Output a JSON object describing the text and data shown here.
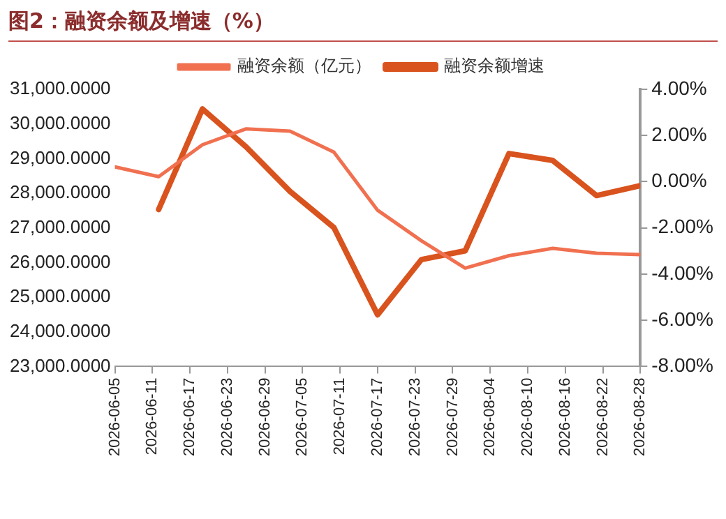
{
  "chart_data": {
    "type": "line",
    "title": "图2：融资余额及增速（%）",
    "x": [
      "2026-06-05",
      "2026-06-12",
      "2026-06-19",
      "2026-06-26",
      "2026-07-03",
      "2026-07-10",
      "2026-07-17",
      "2026-07-24",
      "2026-07-31",
      "2026-08-07",
      "2026-08-14",
      "2026-08-21",
      "2026-08-28"
    ],
    "series": [
      {
        "name": "融资余额（亿元）",
        "color": "#f07050",
        "values": [
          28760,
          28480,
          29400,
          29860,
          29790,
          29190,
          27510,
          26630,
          25840,
          26200,
          26410,
          26270,
          26230
        ]
      },
      {
        "name": "融资余额增速",
        "color": "#d9531e",
        "axis": "y2",
        "values": [
          null,
          -1.2,
          3.15,
          1.5,
          -0.42,
          -1.98,
          -5.76,
          -3.37,
          -2.99,
          1.22,
          0.92,
          -0.6,
          -0.17
        ]
      }
    ],
    "xlim": [
      "2026-06-05",
      "2026-08-28"
    ],
    "xticks": [
      "2026-06-05",
      "2026-06-11",
      "2026-06-17",
      "2026-06-23",
      "2026-06-29",
      "2026-07-05",
      "2026-07-11",
      "2026-07-17",
      "2026-07-23",
      "2026-07-29",
      "2026-08-04",
      "2026-08-10",
      "2026-08-16",
      "2026-08-22",
      "2026-08-28"
    ],
    "ylim": [
      23000,
      31000
    ],
    "yticks": [
      {
        "value": 23000,
        "label": "23,000.0000"
      },
      {
        "value": 24000,
        "label": "24,000.0000"
      },
      {
        "value": 25000,
        "label": "25,000.0000"
      },
      {
        "value": 26000,
        "label": "26,000.0000"
      },
      {
        "value": 27000,
        "label": "27,000.0000"
      },
      {
        "value": 28000,
        "label": "28,000.0000"
      },
      {
        "value": 29000,
        "label": "29,000.0000"
      },
      {
        "value": 30000,
        "label": "30,000.0000"
      },
      {
        "value": 31000,
        "label": "31,000.0000"
      }
    ],
    "y2lim": [
      -8,
      4
    ],
    "y2ticks": [
      {
        "value": -8,
        "label": "-8.00%"
      },
      {
        "value": -6,
        "label": "-6.00%"
      },
      {
        "value": -4,
        "label": "-4.00%"
      },
      {
        "value": -2,
        "label": "-2.00%"
      },
      {
        "value": 0,
        "label": "0.00%"
      },
      {
        "value": 2,
        "label": "2.00%"
      },
      {
        "value": 4,
        "label": "4.00%"
      }
    ],
    "grid": false,
    "legend": "top",
    "marker": "none",
    "line_style": "solid"
  }
}
